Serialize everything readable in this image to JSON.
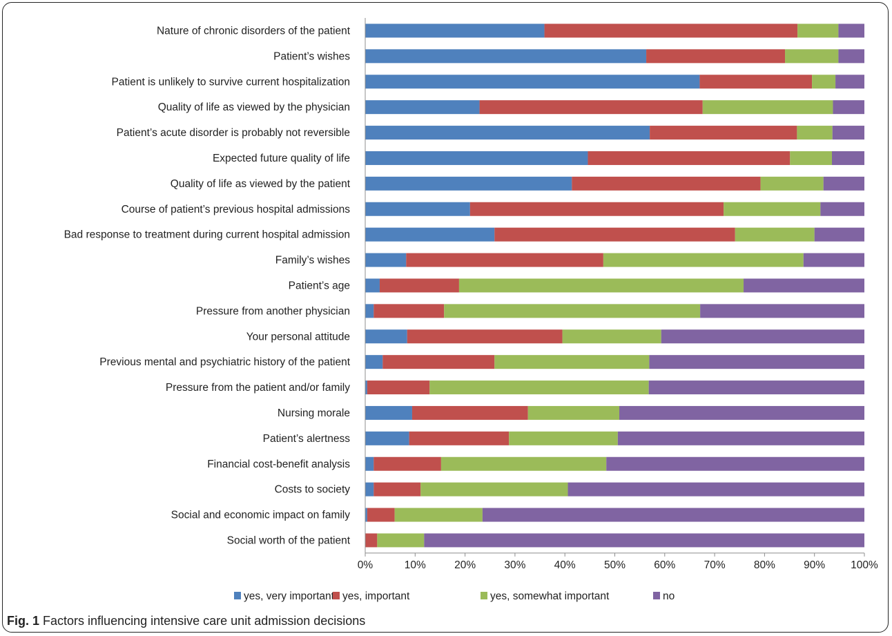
{
  "figure": {
    "caption_label": "Fig. 1",
    "caption_text": "Factors influencing intensive care unit admission decisions"
  },
  "chart_data": {
    "type": "bar",
    "orientation": "horizontal",
    "stacked": "percent",
    "categories": [
      "Nature of chronic disorders of the patient",
      "Patient’s wishes",
      "Patient is unlikely to survive current hospitalization",
      "Quality of life as viewed by the physician",
      "Patient’s acute disorder is probably not reversible",
      "Expected future quality of life",
      "Quality of life as viewed by the patient",
      "Course of patient’s previous hospital admissions",
      "Bad response to treatment during current hospital admission",
      "Family’s wishes",
      "Patient’s age",
      "Pressure from another physician",
      "Your personal attitude",
      "Previous mental and psychiatric history of the patient",
      "Pressure from the patient and/or family",
      "Nursing morale",
      "Patient’s alertness",
      "Financial cost-benefit analysis",
      "Costs to society",
      "Social and economic impact on family",
      "Social worth of the patient"
    ],
    "series": [
      {
        "name": "yes, very important",
        "color": "#4F81BD",
        "values": [
          35.9,
          56.3,
          67.0,
          22.9,
          57.0,
          44.6,
          41.4,
          21.0,
          25.9,
          8.2,
          2.9,
          1.7,
          8.4,
          3.5,
          0.4,
          9.4,
          8.8,
          1.7,
          1.7,
          0.4,
          0.0
        ]
      },
      {
        "name": "yes, important",
        "color": "#C0504D",
        "values": [
          50.7,
          27.8,
          22.5,
          44.7,
          29.5,
          40.5,
          37.8,
          50.8,
          48.2,
          39.5,
          15.9,
          14.1,
          31.1,
          22.4,
          12.5,
          23.2,
          20.0,
          13.5,
          9.4,
          5.5,
          2.4
        ]
      },
      {
        "name": "yes, somewhat important",
        "color": "#9BBB59",
        "values": [
          8.2,
          10.7,
          4.7,
          26.1,
          7.1,
          8.4,
          12.6,
          19.4,
          15.9,
          40.1,
          57.0,
          51.3,
          19.8,
          31.0,
          43.9,
          18.3,
          21.8,
          33.1,
          29.5,
          17.6,
          9.4
        ]
      },
      {
        "name": "no",
        "color": "#8064A2",
        "values": [
          5.2,
          5.2,
          5.8,
          6.3,
          6.4,
          6.5,
          8.2,
          8.8,
          10.0,
          12.2,
          24.2,
          32.9,
          40.7,
          43.1,
          43.2,
          49.1,
          49.4,
          51.7,
          59.4,
          76.5,
          88.2
        ]
      }
    ],
    "x_ticks": [
      "0%",
      "10%",
      "20%",
      "30%",
      "40%",
      "50%",
      "60%",
      "70%",
      "80%",
      "90%",
      "100%"
    ],
    "xlim": [
      0,
      100
    ],
    "grid": false,
    "legend_position": "bottom"
  }
}
